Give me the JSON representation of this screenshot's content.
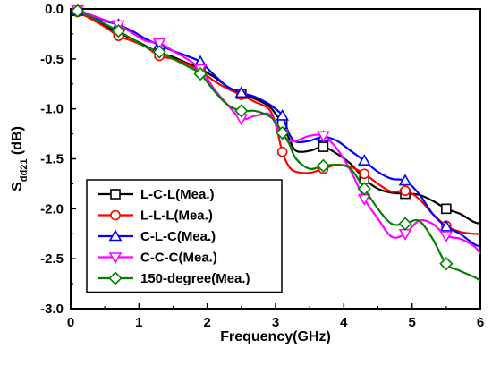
{
  "chart_data": {
    "type": "line",
    "xlabel": "Frequency(GHz)",
    "ylabel_main": "S",
    "ylabel_sub": "dd21",
    "ylabel_unit": " (dB)",
    "xlim": [
      0,
      6
    ],
    "ylim": [
      -3.0,
      0.0
    ],
    "x_ticks": [
      0,
      1,
      2,
      3,
      4,
      5,
      6
    ],
    "y_ticks": [
      0.0,
      -0.5,
      -1.0,
      -1.5,
      -2.0,
      -2.5,
      -3.0
    ],
    "x_tick_labels": [
      "0",
      "1",
      "2",
      "3",
      "4",
      "5",
      "6"
    ],
    "y_tick_labels": [
      "0.0",
      "-0.5",
      "-1.0",
      "-1.5",
      "-2.0",
      "-2.5",
      "-3.0"
    ],
    "grid": false,
    "legend_position": "bottom-left",
    "series": [
      {
        "name": "L-C-L(Mea.)",
        "color": "#000000",
        "marker": "square",
        "marker_x": [
          0.1,
          0.7,
          1.3,
          1.9,
          2.5,
          3.1,
          3.7,
          4.3,
          4.9,
          5.5
        ],
        "points": [
          [
            0.05,
            -0.02
          ],
          [
            0.1,
            -0.02
          ],
          [
            0.3,
            -0.08
          ],
          [
            0.5,
            -0.17
          ],
          [
            0.7,
            -0.24
          ],
          [
            0.9,
            -0.3
          ],
          [
            1.1,
            -0.37
          ],
          [
            1.3,
            -0.44
          ],
          [
            1.5,
            -0.48
          ],
          [
            1.7,
            -0.54
          ],
          [
            1.9,
            -0.6
          ],
          [
            2.1,
            -0.68
          ],
          [
            2.3,
            -0.78
          ],
          [
            2.5,
            -0.85
          ],
          [
            2.7,
            -0.9
          ],
          [
            2.9,
            -0.97
          ],
          [
            3.0,
            -1.05
          ],
          [
            3.1,
            -1.15
          ],
          [
            3.2,
            -1.3
          ],
          [
            3.3,
            -1.42
          ],
          [
            3.5,
            -1.42
          ],
          [
            3.7,
            -1.38
          ],
          [
            3.9,
            -1.45
          ],
          [
            4.1,
            -1.55
          ],
          [
            4.3,
            -1.7
          ],
          [
            4.5,
            -1.8
          ],
          [
            4.7,
            -1.84
          ],
          [
            4.9,
            -1.85
          ],
          [
            5.1,
            -1.86
          ],
          [
            5.3,
            -1.92
          ],
          [
            5.5,
            -2.0
          ],
          [
            5.7,
            -2.05
          ],
          [
            5.9,
            -2.13
          ],
          [
            6.0,
            -2.15
          ]
        ]
      },
      {
        "name": "L-L-L(Mea.)",
        "color": "#ff0000",
        "marker": "circle",
        "marker_x": [
          0.1,
          0.7,
          1.3,
          1.9,
          2.5,
          3.1,
          3.7,
          4.3,
          4.9,
          5.5
        ],
        "points": [
          [
            0.05,
            -0.02
          ],
          [
            0.1,
            -0.03
          ],
          [
            0.3,
            -0.1
          ],
          [
            0.5,
            -0.18
          ],
          [
            0.7,
            -0.27
          ],
          [
            0.9,
            -0.32
          ],
          [
            1.1,
            -0.38
          ],
          [
            1.3,
            -0.47
          ],
          [
            1.5,
            -0.5
          ],
          [
            1.7,
            -0.55
          ],
          [
            1.9,
            -0.62
          ],
          [
            2.1,
            -0.72
          ],
          [
            2.3,
            -0.8
          ],
          [
            2.5,
            -0.86
          ],
          [
            2.7,
            -0.93
          ],
          [
            2.9,
            -1.0
          ],
          [
            3.0,
            -1.15
          ],
          [
            3.1,
            -1.43
          ],
          [
            3.2,
            -1.58
          ],
          [
            3.3,
            -1.63
          ],
          [
            3.5,
            -1.64
          ],
          [
            3.7,
            -1.6
          ],
          [
            3.9,
            -1.56
          ],
          [
            4.1,
            -1.58
          ],
          [
            4.3,
            -1.65
          ],
          [
            4.5,
            -1.75
          ],
          [
            4.7,
            -1.83
          ],
          [
            4.9,
            -1.82
          ],
          [
            5.1,
            -1.9
          ],
          [
            5.3,
            -2.05
          ],
          [
            5.5,
            -2.17
          ],
          [
            5.7,
            -2.23
          ],
          [
            5.9,
            -2.25
          ],
          [
            6.0,
            -2.25
          ]
        ]
      },
      {
        "name": "C-L-C(Mea.)",
        "color": "#0000ff",
        "marker": "triangle-up",
        "marker_x": [
          0.1,
          0.7,
          1.3,
          1.9,
          2.5,
          3.1,
          3.7,
          4.3,
          4.9,
          5.5
        ],
        "points": [
          [
            0.05,
            0.0
          ],
          [
            0.1,
            -0.02
          ],
          [
            0.3,
            -0.07
          ],
          [
            0.5,
            -0.12
          ],
          [
            0.7,
            -0.16
          ],
          [
            0.9,
            -0.22
          ],
          [
            1.1,
            -0.3
          ],
          [
            1.3,
            -0.36
          ],
          [
            1.5,
            -0.42
          ],
          [
            1.7,
            -0.47
          ],
          [
            1.9,
            -0.53
          ],
          [
            2.1,
            -0.66
          ],
          [
            2.3,
            -0.78
          ],
          [
            2.5,
            -0.84
          ],
          [
            2.7,
            -0.88
          ],
          [
            2.9,
            -0.95
          ],
          [
            3.0,
            -1.0
          ],
          [
            3.1,
            -1.07
          ],
          [
            3.2,
            -1.25
          ],
          [
            3.3,
            -1.33
          ],
          [
            3.5,
            -1.32
          ],
          [
            3.7,
            -1.28
          ],
          [
            3.9,
            -1.32
          ],
          [
            4.1,
            -1.42
          ],
          [
            4.3,
            -1.52
          ],
          [
            4.5,
            -1.63
          ],
          [
            4.7,
            -1.7
          ],
          [
            4.9,
            -1.72
          ],
          [
            5.1,
            -1.85
          ],
          [
            5.3,
            -2.05
          ],
          [
            5.5,
            -2.18
          ],
          [
            5.7,
            -2.25
          ],
          [
            5.9,
            -2.35
          ],
          [
            6.0,
            -2.38
          ]
        ]
      },
      {
        "name": "C-C-C(Mea.)",
        "color": "#ff00ff",
        "marker": "triangle-down",
        "marker_x": [
          0.1,
          0.7,
          1.3,
          1.9,
          2.5,
          3.1,
          3.7,
          4.3,
          4.9,
          5.5
        ],
        "points": [
          [
            0.05,
            0.0
          ],
          [
            0.1,
            -0.01
          ],
          [
            0.3,
            -0.06
          ],
          [
            0.5,
            -0.11
          ],
          [
            0.7,
            -0.16
          ],
          [
            0.9,
            -0.24
          ],
          [
            1.1,
            -0.32
          ],
          [
            1.3,
            -0.34
          ],
          [
            1.5,
            -0.42
          ],
          [
            1.7,
            -0.5
          ],
          [
            1.9,
            -0.6
          ],
          [
            2.1,
            -0.8
          ],
          [
            2.3,
            -0.96
          ],
          [
            2.5,
            -1.1
          ],
          [
            2.7,
            -1.07
          ],
          [
            2.9,
            -1.05
          ],
          [
            3.0,
            -1.15
          ],
          [
            3.1,
            -1.25
          ],
          [
            3.2,
            -1.32
          ],
          [
            3.3,
            -1.32
          ],
          [
            3.5,
            -1.27
          ],
          [
            3.7,
            -1.27
          ],
          [
            3.9,
            -1.4
          ],
          [
            4.1,
            -1.62
          ],
          [
            4.3,
            -1.9
          ],
          [
            4.5,
            -2.1
          ],
          [
            4.7,
            -2.28
          ],
          [
            4.9,
            -2.25
          ],
          [
            5.1,
            -2.12
          ],
          [
            5.3,
            -2.15
          ],
          [
            5.5,
            -2.27
          ],
          [
            5.7,
            -2.3
          ],
          [
            5.9,
            -2.37
          ],
          [
            6.0,
            -2.45
          ]
        ]
      },
      {
        "name": "150-degree(Mea.)",
        "color": "#008000",
        "marker": "diamond",
        "marker_x": [
          0.1,
          0.7,
          1.3,
          1.9,
          2.5,
          3.1,
          3.7,
          4.3,
          4.9,
          5.5
        ],
        "points": [
          [
            0.05,
            -0.02
          ],
          [
            0.1,
            -0.02
          ],
          [
            0.3,
            -0.08
          ],
          [
            0.5,
            -0.15
          ],
          [
            0.7,
            -0.22
          ],
          [
            0.9,
            -0.3
          ],
          [
            1.1,
            -0.38
          ],
          [
            1.3,
            -0.43
          ],
          [
            1.5,
            -0.5
          ],
          [
            1.7,
            -0.57
          ],
          [
            1.9,
            -0.65
          ],
          [
            2.1,
            -0.82
          ],
          [
            2.3,
            -0.96
          ],
          [
            2.5,
            -1.02
          ],
          [
            2.7,
            -1.02
          ],
          [
            2.9,
            -1.07
          ],
          [
            3.0,
            -1.13
          ],
          [
            3.1,
            -1.24
          ],
          [
            3.2,
            -1.35
          ],
          [
            3.3,
            -1.5
          ],
          [
            3.5,
            -1.6
          ],
          [
            3.7,
            -1.57
          ],
          [
            3.9,
            -1.56
          ],
          [
            4.1,
            -1.6
          ],
          [
            4.3,
            -1.8
          ],
          [
            4.5,
            -2.0
          ],
          [
            4.7,
            -2.15
          ],
          [
            4.9,
            -2.15
          ],
          [
            5.1,
            -2.12
          ],
          [
            5.3,
            -2.3
          ],
          [
            5.5,
            -2.55
          ],
          [
            5.7,
            -2.62
          ],
          [
            5.9,
            -2.68
          ],
          [
            6.0,
            -2.72
          ]
        ]
      }
    ]
  }
}
